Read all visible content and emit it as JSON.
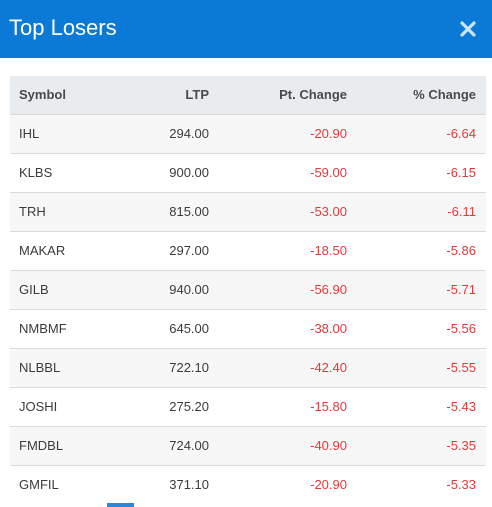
{
  "dialog": {
    "title": "Top Losers",
    "close_icon": "close-icon"
  },
  "table": {
    "headers": {
      "symbol": "Symbol",
      "ltp": "LTP",
      "pt_change": "Pt. Change",
      "pct_change": "% Change"
    },
    "rows": [
      {
        "symbol": "IHL",
        "ltp": "294.00",
        "pt_change": "-20.90",
        "pct_change": "-6.64"
      },
      {
        "symbol": "KLBS",
        "ltp": "900.00",
        "pt_change": "-59.00",
        "pct_change": "-6.15"
      },
      {
        "symbol": "TRH",
        "ltp": "815.00",
        "pt_change": "-53.00",
        "pct_change": "-6.11"
      },
      {
        "symbol": "MAKAR",
        "ltp": "297.00",
        "pt_change": "-18.50",
        "pct_change": "-5.86"
      },
      {
        "symbol": "GILB",
        "ltp": "940.00",
        "pt_change": "-56.90",
        "pct_change": "-5.71"
      },
      {
        "symbol": "NMBMF",
        "ltp": "645.00",
        "pt_change": "-38.00",
        "pct_change": "-5.56"
      },
      {
        "symbol": "NLBBL",
        "ltp": "722.10",
        "pt_change": "-42.40",
        "pct_change": "-5.55"
      },
      {
        "symbol": "JOSHI",
        "ltp": "275.20",
        "pt_change": "-15.80",
        "pct_change": "-5.43"
      },
      {
        "symbol": "FMDBL",
        "ltp": "724.00",
        "pt_change": "-40.90",
        "pct_change": "-5.35"
      },
      {
        "symbol": "GMFIL",
        "ltp": "371.10",
        "pt_change": "-20.90",
        "pct_change": "-5.33"
      }
    ]
  },
  "colors": {
    "header_bg": "#0a7ad6",
    "negative": "#e23a3a",
    "table_header_bg": "#e9ecef"
  }
}
